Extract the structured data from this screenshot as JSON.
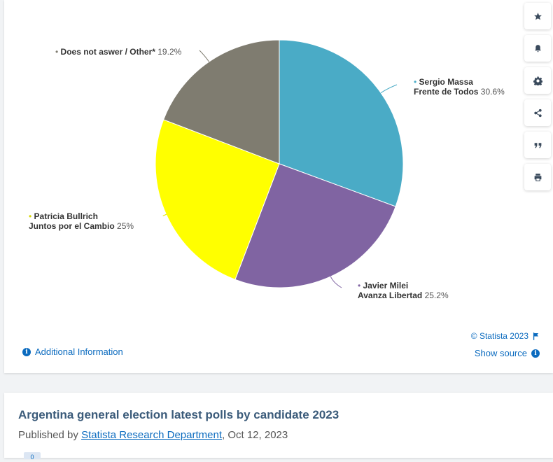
{
  "chart_data": {
    "type": "pie",
    "slices": [
      {
        "name": "Sergio Massa",
        "party": "Frente de Todos",
        "value": 30.6,
        "label": "30.6%",
        "color": "#4aabc6"
      },
      {
        "name": "Javier Milei",
        "party": "Avanza Libertad",
        "value": 25.2,
        "label": "25.2%",
        "color": "#8064a2"
      },
      {
        "name": "Patricia Bullrich",
        "party": "Juntos por el Cambio",
        "value": 25,
        "label": "25%",
        "color": "#ffff00"
      },
      {
        "name": "Does not aswer / Other*",
        "party": "",
        "value": 19.2,
        "label": "19.2%",
        "color": "#7f7c70"
      }
    ],
    "start_angle_deg": 0,
    "direction": "clockwise"
  },
  "toolbar": {
    "icons": [
      "star-icon",
      "bell-icon",
      "gear-icon",
      "share-icon",
      "quote-icon",
      "print-icon"
    ]
  },
  "footer": {
    "additional_info": "Additional Information",
    "copyright": "© Statista 2023",
    "show_source": "Show source"
  },
  "article": {
    "title": "Argentina general election latest polls by candidate 2023",
    "published_prefix": "Published by ",
    "publisher": "Statista Research Department",
    "date_suffix": ", Oct 12, 2023",
    "tag": "0"
  },
  "colors": {
    "link": "#0b6bbf",
    "title": "#3b5b7a"
  }
}
